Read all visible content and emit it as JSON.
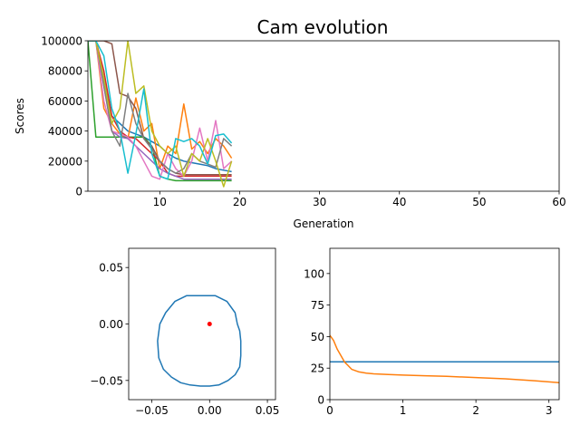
{
  "figure": {
    "title": "Cam evolution"
  },
  "colors": {
    "c0": "#1f77b4",
    "c1": "#ff7f0e",
    "c2": "#2ca02c",
    "c3": "#d62728",
    "c4": "#9467bd",
    "c5": "#8c564b",
    "c6": "#e377c2",
    "c7": "#7f7f7f",
    "c8": "#bcbd22",
    "c9": "#17becf"
  },
  "chart_data": [
    {
      "type": "line",
      "title": "Cam evolution",
      "xlabel": "Generation",
      "ylabel": "Scores",
      "xlim": [
        1,
        60
      ],
      "ylim": [
        0,
        100000
      ],
      "xticks": [
        10,
        20,
        30,
        40,
        50,
        60
      ],
      "yticks": [
        0,
        20000,
        40000,
        60000,
        80000,
        100000
      ],
      "grid": false,
      "series": [
        {
          "color": "#1f77b4",
          "x": [
            1,
            2,
            3,
            4,
            5,
            6,
            7,
            8,
            9,
            10,
            11,
            12,
            13,
            14,
            15,
            16,
            17,
            18,
            19
          ],
          "y": [
            100000,
            100000,
            75000,
            50000,
            45000,
            40000,
            38000,
            36000,
            33000,
            30000,
            25000,
            22000,
            20000,
            19000,
            18000,
            17000,
            15000,
            14000,
            13000
          ]
        },
        {
          "color": "#ff7f0e",
          "x": [
            1,
            2,
            3,
            4,
            5,
            6,
            7,
            8,
            9,
            10,
            11,
            12,
            13,
            14,
            15,
            16,
            17,
            18,
            19
          ],
          "y": [
            100000,
            100000,
            55000,
            45000,
            38000,
            35000,
            62000,
            40000,
            45000,
            15000,
            30000,
            25000,
            58000,
            28000,
            33000,
            25000,
            35000,
            30000,
            22000
          ]
        },
        {
          "color": "#2ca02c",
          "x": [
            1,
            2,
            3,
            4,
            5,
            6,
            7,
            8,
            9,
            10,
            11,
            12,
            13,
            14,
            15,
            16,
            17,
            18,
            19
          ],
          "y": [
            100000,
            36000,
            36000,
            36000,
            36000,
            36000,
            36000,
            36000,
            30000,
            10000,
            8000,
            7000,
            7000,
            7000,
            7000,
            7000,
            7000,
            7000,
            7000
          ]
        },
        {
          "color": "#d62728",
          "x": [
            1,
            2,
            3,
            4,
            5,
            6,
            7,
            8,
            9,
            10,
            11,
            12,
            13,
            14,
            15,
            16,
            17,
            18,
            19
          ],
          "y": [
            100000,
            100000,
            80000,
            50000,
            40000,
            36000,
            35000,
            30000,
            25000,
            20000,
            12000,
            10000,
            10000,
            10000,
            10000,
            10000,
            10000,
            10000,
            10000
          ]
        },
        {
          "color": "#9467bd",
          "x": [
            1,
            2,
            3,
            4,
            5,
            6,
            7,
            8,
            9,
            10,
            11,
            12,
            13,
            14,
            15,
            16,
            17,
            18,
            19
          ],
          "y": [
            100000,
            100000,
            70000,
            40000,
            36000,
            35000,
            30000,
            25000,
            20000,
            15000,
            12000,
            10000,
            8000,
            8000,
            8000,
            8000,
            8000,
            8000,
            8000
          ]
        },
        {
          "color": "#8c564b",
          "x": [
            1,
            2,
            3,
            4,
            5,
            6,
            7,
            8,
            9,
            10,
            11,
            12,
            13,
            14,
            15,
            16,
            17,
            18,
            19
          ],
          "y": [
            100000,
            100000,
            100000,
            98000,
            65000,
            63000,
            55000,
            35000,
            30000,
            20000,
            15000,
            12000,
            11000,
            11000,
            11000,
            11000,
            11000,
            11000,
            11000
          ]
        },
        {
          "color": "#e377c2",
          "x": [
            1,
            2,
            3,
            4,
            5,
            6,
            7,
            8,
            9,
            10,
            11,
            12,
            13,
            14,
            15,
            16,
            17,
            18,
            19
          ],
          "y": [
            100000,
            100000,
            60000,
            40000,
            38000,
            36000,
            30000,
            20000,
            10000,
            8000,
            25000,
            15000,
            10000,
            20000,
            42000,
            20000,
            47000,
            15000,
            20000
          ]
        },
        {
          "color": "#7f7f7f",
          "x": [
            1,
            2,
            3,
            4,
            5,
            6,
            7,
            8,
            9,
            10,
            11,
            12,
            13,
            14,
            15,
            16,
            17,
            18,
            19
          ],
          "y": [
            100000,
            100000,
            70000,
            40000,
            30000,
            65000,
            45000,
            35000,
            28000,
            20000,
            15000,
            12000,
            15000,
            25000,
            20000,
            18000,
            16000,
            35000,
            30000
          ]
        },
        {
          "color": "#bcbd22",
          "x": [
            1,
            2,
            3,
            4,
            5,
            6,
            7,
            8,
            9,
            10,
            11,
            12,
            13,
            14,
            15,
            16,
            17,
            18,
            19
          ],
          "y": [
            100000,
            100000,
            75000,
            45000,
            55000,
            100000,
            65000,
            70000,
            40000,
            30000,
            25000,
            30000,
            10000,
            25000,
            20000,
            35000,
            20000,
            3000,
            20000
          ]
        },
        {
          "color": "#17becf",
          "x": [
            1,
            2,
            3,
            4,
            5,
            6,
            7,
            8,
            9,
            10,
            11,
            12,
            13,
            14,
            15,
            16,
            17,
            18,
            19
          ],
          "y": [
            100000,
            100000,
            90000,
            55000,
            40000,
            12000,
            38000,
            68000,
            25000,
            10000,
            8000,
            35000,
            33000,
            35000,
            30000,
            18000,
            37000,
            38000,
            32000
          ]
        }
      ]
    },
    {
      "type": "line",
      "title": "",
      "xlabel": "",
      "ylabel": "",
      "xlim": [
        -0.07,
        0.057
      ],
      "ylim": [
        -0.067,
        0.067
      ],
      "xticks": [
        -0.05,
        0.0,
        0.05
      ],
      "yticks": [
        -0.05,
        0.0,
        0.05
      ],
      "xtick_labels": [
        "−0.05",
        "0.00",
        "0.05"
      ],
      "ytick_labels": [
        "−0.05",
        "0.00",
        "0.05"
      ],
      "grid": false,
      "series": [
        {
          "color": "#1f77b4",
          "x": [
            0.024,
            0.022,
            0.015,
            0.005,
            -0.008,
            -0.02,
            -0.03,
            -0.038,
            -0.043,
            -0.045,
            -0.044,
            -0.04,
            -0.033,
            -0.025,
            -0.017,
            -0.008,
            0.0,
            0.008,
            0.016,
            0.022,
            0.026,
            0.027,
            0.027,
            0.026,
            0.024
          ],
          "y": [
            0.0,
            0.01,
            0.02,
            0.025,
            0.025,
            0.025,
            0.02,
            0.01,
            0.0,
            -0.015,
            -0.03,
            -0.04,
            -0.047,
            -0.052,
            -0.054,
            -0.055,
            -0.055,
            -0.054,
            -0.05,
            -0.045,
            -0.038,
            -0.028,
            -0.015,
            -0.006,
            0.0
          ]
        },
        {
          "color": "#ff0000",
          "x": [
            0.0
          ],
          "y": [
            0.0
          ],
          "marker": "dot"
        }
      ]
    },
    {
      "type": "line",
      "title": "",
      "xlabel": "",
      "ylabel": "",
      "xlim": [
        0,
        3.14
      ],
      "ylim": [
        0,
        120
      ],
      "xticks": [
        0,
        1,
        2,
        3
      ],
      "yticks": [
        0,
        25,
        50,
        75,
        100
      ],
      "grid": false,
      "series": [
        {
          "color": "#1f77b4",
          "x": [
            0,
            3.14
          ],
          "y": [
            30,
            30
          ]
        },
        {
          "color": "#ff7f0e",
          "x": [
            0,
            0.05,
            0.1,
            0.2,
            0.3,
            0.4,
            0.5,
            0.6,
            0.8,
            1.0,
            1.3,
            1.6,
            2.0,
            2.4,
            2.8,
            3.14
          ],
          "y": [
            51,
            47,
            40,
            30,
            24,
            22,
            21,
            20.5,
            20,
            19.5,
            19,
            18.5,
            17.5,
            16.5,
            15,
            13.5
          ]
        }
      ]
    }
  ]
}
